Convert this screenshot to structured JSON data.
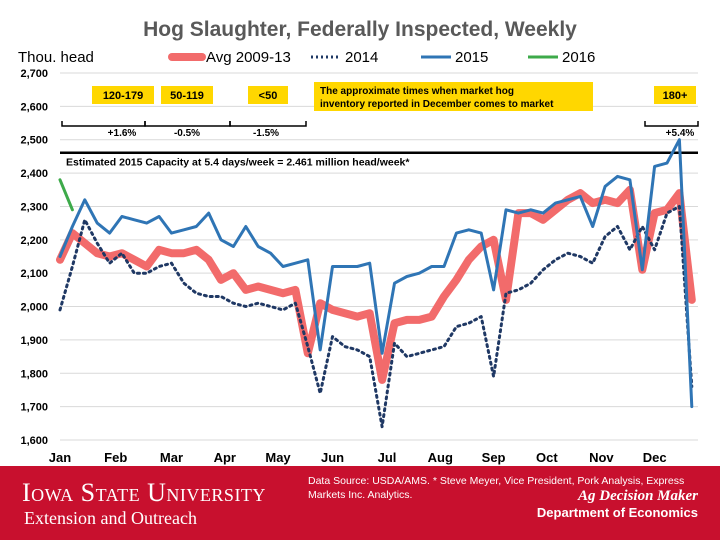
{
  "chart_data": {
    "type": "line",
    "title": "Hog Slaughter, Federally Inspected, Weekly",
    "ylabel": "Thou. head",
    "ylim": [
      1600,
      2700
    ],
    "y_ticks": [
      "1,600",
      "1,700",
      "1,800",
      "1,900",
      "2,000",
      "2,100",
      "2,200",
      "2,300",
      "2,400",
      "2,500",
      "2,600",
      "2,700"
    ],
    "y_tick_values": [
      1600,
      1700,
      1800,
      1900,
      2000,
      2100,
      2200,
      2300,
      2400,
      2500,
      2600,
      2700
    ],
    "x_ticks": [
      "Jan",
      "Feb",
      "Mar",
      "Apr",
      "May",
      "Jun",
      "Jul",
      "Aug",
      "Sep",
      "Oct",
      "Nov",
      "Dec"
    ],
    "x_tick_weeks": [
      1,
      5.5,
      10,
      14.3,
      18.6,
      23,
      27.4,
      31.7,
      36,
      40.3,
      44.7,
      49
    ],
    "grid": true,
    "legend_position": "top",
    "series": [
      {
        "name": "Avg 2009-13",
        "color": "#f26b6b",
        "style": "solid-thick",
        "week": [
          1,
          2,
          3,
          4,
          5,
          6,
          7,
          8,
          9,
          10,
          11,
          12,
          13,
          14,
          15,
          16,
          17,
          18,
          19,
          20,
          21,
          22,
          23,
          24,
          25,
          26,
          27,
          28,
          29,
          30,
          31,
          32,
          33,
          34,
          35,
          36,
          37,
          38,
          39,
          40,
          41,
          42,
          43,
          44,
          45,
          46,
          47,
          48,
          49,
          50,
          51,
          52
        ],
        "values": [
          2140,
          2220,
          2190,
          2160,
          2150,
          2160,
          2140,
          2120,
          2170,
          2160,
          2160,
          2170,
          2140,
          2080,
          2100,
          2050,
          2060,
          2050,
          2040,
          2050,
          1860,
          2010,
          1990,
          1980,
          1970,
          1980,
          1780,
          1950,
          1960,
          1960,
          1970,
          2030,
          2080,
          2140,
          2180,
          2200,
          2020,
          2280,
          2280,
          2260,
          2290,
          2320,
          2340,
          2310,
          2320,
          2310,
          2350,
          2110,
          2280,
          2290,
          2340,
          2020
        ]
      },
      {
        "name": "2014",
        "color": "#1f3864",
        "style": "dotted",
        "week": [
          1,
          2,
          3,
          4,
          5,
          6,
          7,
          8,
          9,
          10,
          11,
          12,
          13,
          14,
          15,
          16,
          17,
          18,
          19,
          20,
          21,
          22,
          23,
          24,
          25,
          26,
          27,
          28,
          29,
          30,
          31,
          32,
          33,
          34,
          35,
          36,
          37,
          38,
          39,
          40,
          41,
          42,
          43,
          44,
          45,
          46,
          47,
          48,
          49,
          50,
          51,
          52
        ],
        "values": [
          1990,
          2120,
          2260,
          2190,
          2130,
          2160,
          2100,
          2100,
          2120,
          2130,
          2070,
          2040,
          2030,
          2030,
          2010,
          2000,
          2010,
          2000,
          1990,
          2010,
          1880,
          1740,
          1910,
          1880,
          1870,
          1850,
          1640,
          1890,
          1850,
          1860,
          1870,
          1880,
          1940,
          1950,
          1970,
          1790,
          2040,
          2050,
          2070,
          2110,
          2140,
          2160,
          2150,
          2130,
          2210,
          2240,
          2170,
          2240,
          2170,
          2280,
          2300,
          1760
        ]
      },
      {
        "name": "2015",
        "color": "#2f75b5",
        "style": "solid",
        "week": [
          1,
          2,
          3,
          4,
          5,
          6,
          7,
          8,
          9,
          10,
          11,
          12,
          13,
          14,
          15,
          16,
          17,
          18,
          19,
          20,
          21,
          22,
          23,
          24,
          25,
          26,
          27,
          28,
          29,
          30,
          31,
          32,
          33,
          34,
          35,
          36,
          37,
          38,
          39,
          40,
          41,
          42,
          43,
          44,
          45,
          46,
          47,
          48,
          49,
          50,
          51,
          52
        ],
        "values": [
          2150,
          2240,
          2320,
          2250,
          2220,
          2270,
          2260,
          2250,
          2270,
          2220,
          2230,
          2240,
          2280,
          2200,
          2180,
          2240,
          2180,
          2160,
          2120,
          2130,
          2140,
          1870,
          2120,
          2120,
          2120,
          2130,
          1860,
          2070,
          2090,
          2100,
          2120,
          2120,
          2220,
          2230,
          2220,
          2050,
          2290,
          2280,
          2290,
          2280,
          2310,
          2320,
          2330,
          2240,
          2360,
          2390,
          2380,
          2110,
          2420,
          2430,
          2500,
          1700
        ]
      },
      {
        "name": "2016",
        "color": "#3daa4a",
        "style": "solid",
        "week": [
          1,
          2
        ],
        "values": [
          2380,
          2290
        ]
      }
    ]
  },
  "annotations": {
    "capacity_text": "Estimated 2015 Capacity at 5.4 days/week = 2.461 million head/week*",
    "capacity_value": 2461,
    "note_text_line1": "The approximate times when market hog",
    "note_text_line2": "inventory reported in December comes to market",
    "weight_boxes": [
      {
        "label": "120-179",
        "change": "+1.6%"
      },
      {
        "label": "50-119",
        "change": "-0.5%"
      },
      {
        "label": "<50",
        "change": "-1.5%"
      },
      {
        "label": "180+",
        "change": "+5.4%"
      }
    ],
    "box_color": "#ffd700"
  },
  "footer": {
    "university": "Iowa State University",
    "extension": "Extension and Outreach",
    "source": "Data Source: USDA/AMS. * Steve Meyer, Vice President, Pork Analysis, Express Markets Inc. Analytics.",
    "ag_decision_maker": "Ag Decision Maker",
    "department": "Department of Economics",
    "color": "#c8102e"
  }
}
